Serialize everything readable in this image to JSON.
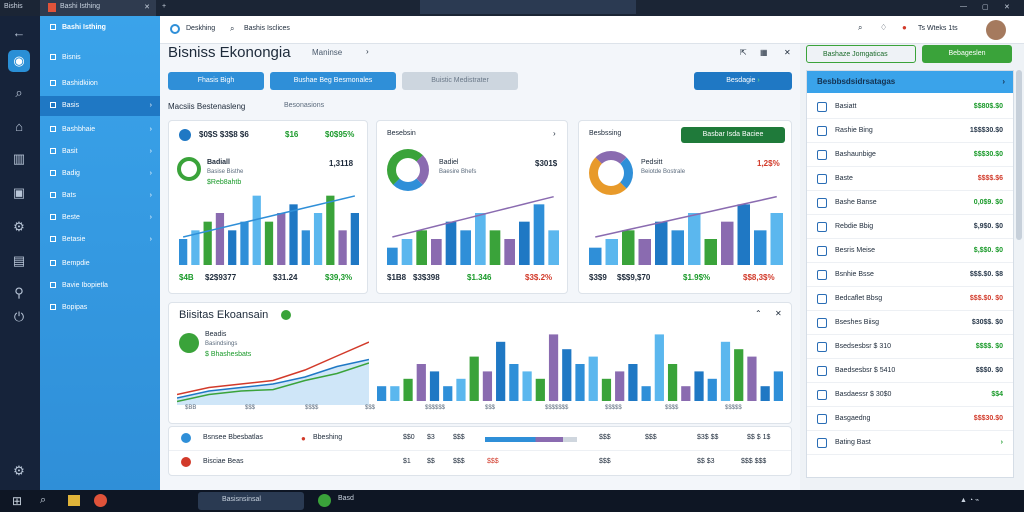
{
  "titlebar": {
    "app": "Bishis",
    "tab": "Bashi Isthing"
  },
  "header": {
    "title": "Bisniss Ekonongia",
    "breadcrumb": "Maninse",
    "search_label": "Deskhing",
    "search_value": "Bashis Isclices",
    "user": "Ts Wteks 1ts"
  },
  "top_actions": {
    "field1": "Bashaze Jomgaticas",
    "button": "Bebageslen"
  },
  "sidebar": {
    "items": [
      {
        "label": "Bisnis"
      },
      {
        "label": "Bashidkiion"
      },
      {
        "label": "Basis"
      },
      {
        "label": "Bashbhaie"
      },
      {
        "label": "Basit"
      },
      {
        "label": "Badig"
      },
      {
        "label": "Bats"
      },
      {
        "label": "Beste"
      },
      {
        "label": "Betasie"
      },
      {
        "label": "Bempdie"
      },
      {
        "label": "Bavie Ibopietla"
      },
      {
        "label": "Bopipas"
      }
    ]
  },
  "filters": {
    "f1": "Fhasis Bigh",
    "f2": "Bushae Beg Besmonales",
    "f3": "Buistic Medistrater",
    "action": "Besdagie",
    "section": "Macsiis Bestenasleng",
    "section2": "Besonasions"
  },
  "card1": {
    "head": "$0$S $3$8 $6",
    "head_value": "$0$95%",
    "badge": "$16",
    "name": "Badiall",
    "value": "1,3118",
    "sub": "Basise Bisthe",
    "pct": "$Reb8ahtb",
    "f1": "$4B",
    "f2": "$2$9377",
    "f3": "$31.24",
    "f4": "$39,3%"
  },
  "card2": {
    "head": "Besebsin",
    "name": "Badiel",
    "value": "$301$",
    "sub": "Baesire Bhefs",
    "f1": "$1B8",
    "f2": "$3$398",
    "f3": "$1.346",
    "f4": "$3$.2%"
  },
  "card3": {
    "head": "Besbssing",
    "badge": "Basbar Isda Baciee",
    "name": "Pedsitt",
    "value": "1,2$%",
    "sub": "Beiotde Bostrale",
    "f1": "$3$9",
    "f2": "$$$9,$70",
    "f3": "$1.9$%",
    "f4": "$$8,3$%"
  },
  "big": {
    "title": "Biisitas Ekoansain",
    "name": "Beadis",
    "sub": "Basindsings",
    "pct": "$ Bhashesbats",
    "x": [
      "$BB",
      "$$$",
      "$$$$",
      "$$$",
      "$$$$$$",
      "$$$",
      "$$$$$$$",
      "$$$$$",
      "$$$$",
      "$$$$$"
    ]
  },
  "bottom": [
    {
      "label": "Bsnsee Bbesbatlas",
      "status": "Bbeshing",
      "a": "$$0",
      "b": "$3",
      "c": "$$$",
      "d": "$$$",
      "e": "$3$ $$",
      "f": "$$ $ 1$"
    },
    {
      "label": "Bisciae Beas",
      "status": "",
      "a": "$1",
      "b": "$$",
      "c": "$$$",
      "d": "$$$",
      "e": "$$ $3",
      "f": "$$$ $$$"
    }
  ],
  "right": {
    "head": "Besbbsdsidrsatagas",
    "rows": [
      {
        "label": "Basiatt",
        "value": "$$80$.$0"
      },
      {
        "label": "Rashie Bing",
        "value": "1$$$30.$0"
      },
      {
        "label": "Bashaunbige",
        "value": "$$$30.$0"
      },
      {
        "label": "Baste",
        "value": "$$$$.$6"
      },
      {
        "label": "Bashe Banse",
        "value": "0,0$9. $0"
      },
      {
        "label": "Rebdie Bbig",
        "value": "$,9$0. $0"
      },
      {
        "label": "Besris Meise",
        "value": "$,$$0. $0"
      },
      {
        "label": "Bsnhie Bsse",
        "value": "$$$.$0. $8"
      },
      {
        "label": "Bedcaflet Bbsg",
        "value": "$$$.$0. $0"
      },
      {
        "label": "Bseshes Biisg",
        "value": "$30$$. $0"
      },
      {
        "label": "Bsedsesbsr  $ 310",
        "value": "$$$$. $0"
      },
      {
        "label": "Baedsesbsr $ 5410",
        "value": "$$$0. $0"
      },
      {
        "label": "Basdaessr  $ 30$0",
        "value": "$$4"
      },
      {
        "label": "Basgaedng",
        "value": "$$$30.$0"
      },
      {
        "label": "Bating Bast",
        "value": ""
      }
    ]
  },
  "taskbar": {
    "app": "Basisnsinsal",
    "app2": "Basd"
  },
  "colors": {
    "accent": "#2f8fd8",
    "green": "#1a9a2a",
    "red": "#d23a2a",
    "purple": "#8a6bb0"
  },
  "chart_data": [
    {
      "type": "bar",
      "series": [
        {
          "name": "",
          "values": [
            3,
            4,
            5,
            6,
            4,
            5,
            8,
            5,
            6,
            7,
            4,
            6,
            8,
            4,
            6
          ]
        }
      ]
    },
    {
      "type": "bar",
      "series": [
        {
          "name": "",
          "values": [
            2,
            3,
            4,
            3,
            5,
            4,
            6,
            4,
            3,
            5,
            7,
            4
          ]
        }
      ]
    },
    {
      "type": "bar",
      "series": [
        {
          "name": "",
          "values": [
            2,
            3,
            4,
            3,
            5,
            4,
            6,
            3,
            5,
            7,
            4,
            6
          ]
        }
      ]
    },
    {
      "type": "bar",
      "series": [
        {
          "name": "",
          "values": [
            2,
            2,
            3,
            5,
            4,
            2,
            3,
            6,
            4,
            8,
            5,
            4,
            3,
            9,
            7,
            5,
            6,
            3,
            4,
            5,
            2,
            9,
            5,
            2,
            4,
            3,
            8,
            7,
            6,
            2,
            4
          ]
        }
      ]
    }
  ]
}
